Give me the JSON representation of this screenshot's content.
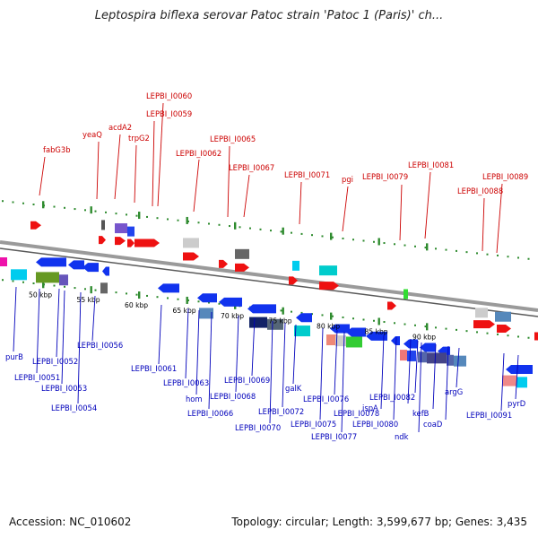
{
  "title": "Leptospira biflexa serovar Patoc strain 'Patoc 1 (Paris)' ch...",
  "footer": {
    "accession": "Accession: NC_010602",
    "topology": "Topology: circular; Length: 3,599,677 bp; Genes: 3,435"
  },
  "colors": {
    "top_label": "#cc0000",
    "bottom_label": "#0000bb",
    "backbone": "#9a9a9a",
    "ruler_dots": "#2e8b2e",
    "forward_strand": "#ee1111",
    "reverse_strand": "#1133ee"
  },
  "scale": {
    "ticks": [
      {
        "kbp": 50,
        "label": "50 kbp"
      },
      {
        "kbp": 55,
        "label": "55 kbp"
      },
      {
        "kbp": 60,
        "label": "60 kbp"
      },
      {
        "kbp": 65,
        "label": "65 kbp"
      },
      {
        "kbp": 70,
        "label": "70 kbp"
      },
      {
        "kbp": 75,
        "label": "75 kbp"
      },
      {
        "kbp": 80,
        "label": "80 kbp"
      },
      {
        "kbp": 85,
        "label": "85 kbp"
      },
      {
        "kbp": 90,
        "label": "90 kbp"
      }
    ]
  },
  "top_labels": [
    "fabG3b",
    "yeaQ",
    "acdA2",
    "trpG2",
    "LEPBI_I0060",
    "LEPBI_I0059",
    "LEPBI_I0062",
    "LEPBI_I0065",
    "LEPBI_I0067",
    "LEPBI_I0071",
    "pgi",
    "LEPBI_I0079",
    "LEPBI_I0081",
    "LEPBI_I0088",
    "LEPBI_I0089"
  ],
  "bottom_labels": [
    "purB",
    "LEPBI_I0051",
    "LEPBI_I0052",
    "LEPBI_I0053",
    "LEPBI_I0054",
    "LEPBI_I0056",
    "LEPBI_I0061",
    "LEPBI_I0063",
    "hom",
    "LEPBI_I0066",
    "LEPBI_I0068",
    "LEPBI_I0069",
    "LEPBI_I0070",
    "LEPBI_I0072",
    "galK",
    "LEPBI_I0075",
    "LEPBI_I0076",
    "LEPBI_I0077",
    "LEPBI_I0078",
    "LEPBI_I0080",
    "ispA",
    "LEPBI_I0082",
    "ndk",
    "kefB",
    "coaD",
    "argG",
    "LEPBI_I0091",
    "pyrD"
  ]
}
